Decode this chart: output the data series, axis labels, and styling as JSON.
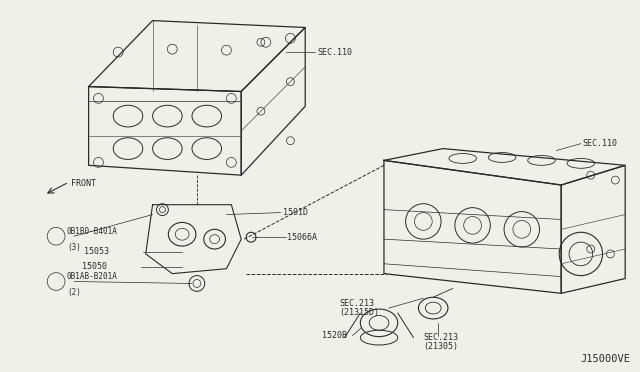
{
  "bg_color": "#f0f0eb",
  "diagram_code": "J15000VE",
  "line_color": "#2a2a2a",
  "text_color": "#2a2a2a",
  "font_size_label": 6.0,
  "font_size_code": 7.5,
  "labels": {
    "sec110_left": "SEC.110",
    "sec110_right": "SEC.110",
    "sec213_upper": "SEC.213\n(21315D)",
    "sec213_lower": "SEC.213\n(21305)",
    "part_1501D": "1501D",
    "part_15053": "15053",
    "part_15050": "15050",
    "part_15066A": "15066A",
    "part_1520B": "1520B",
    "bolt1": "\u00120B1B0-B401A\n(3)",
    "bolt2": "\u00120B1AB-B201A\n(2)",
    "front": "FRONT"
  }
}
